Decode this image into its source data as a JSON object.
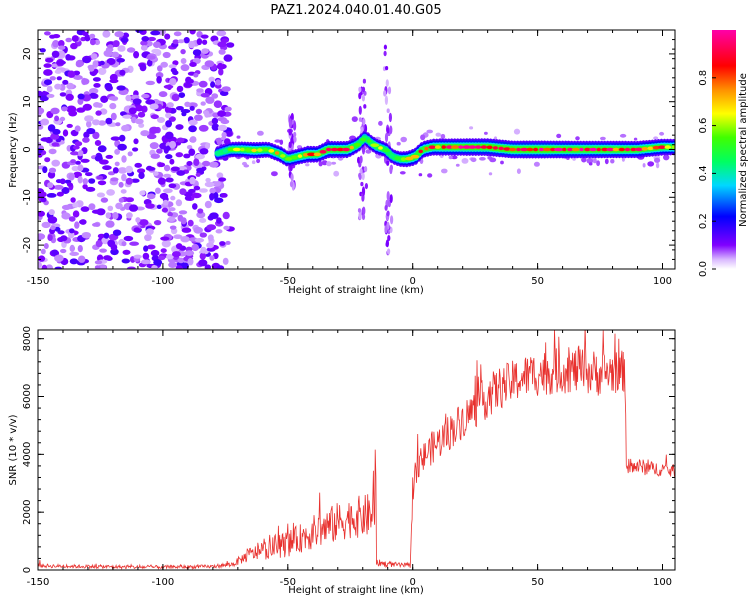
{
  "title": "PAZ1.2024.040.01.40.G05",
  "chart_data": [
    {
      "type": "heatmap",
      "title": "PAZ1.2024.040.01.40.G05",
      "xlabel": "Height of straight line (km)",
      "ylabel": "Frequency (Hz)",
      "xlim": [
        -150,
        105
      ],
      "ylim": [
        -25,
        25
      ],
      "x_ticks": [
        -150,
        -100,
        -50,
        0,
        50,
        100
      ],
      "y_ticks": [
        -20,
        -10,
        0,
        10,
        20
      ],
      "colorbar": {
        "label": "Normalized spectral amplitude",
        "range": [
          0,
          1
        ],
        "ticks": [
          0.0,
          0.2,
          0.4,
          0.6,
          0.8
        ],
        "tick_labels": [
          "0.0",
          "0.2",
          "0.4",
          "0.6",
          "0.8"
        ],
        "colormap": [
          "#ffffff",
          "#8000ff",
          "#0000ff",
          "#00e0ff",
          "#00ff00",
          "#ffff00",
          "#ff8000",
          "#ff0000",
          "#ff00c0"
        ]
      },
      "noise_region": {
        "x_range": [
          -150,
          -73
        ],
        "y_range": [
          -25,
          25
        ]
      },
      "ridge": {
        "x": [
          -78,
          -73,
          -68,
          -63,
          -58,
          -53,
          -50,
          -46,
          -42,
          -38,
          -34,
          -30,
          -26,
          -22,
          -19,
          -17,
          -14,
          -11,
          -8,
          -5,
          -2,
          1,
          4,
          8,
          12,
          20,
          30,
          40,
          50,
          60,
          70,
          80,
          90,
          100,
          105
        ],
        "y": [
          -0.8,
          0,
          0,
          -0.2,
          0,
          -1,
          -2,
          -1.5,
          -1,
          -1,
          0,
          0,
          0,
          1.0,
          2.5,
          1.5,
          0.5,
          0,
          -1.5,
          -2,
          -2,
          -1.5,
          0,
          0.5,
          0.5,
          0.5,
          0.5,
          0,
          0,
          0,
          0,
          0,
          0,
          0.5,
          0.5
        ],
        "intensity": [
          0.35,
          0.55,
          0.65,
          0.75,
          0.6,
          0.7,
          0.6,
          0.65,
          0.8,
          0.75,
          0.9,
          0.8,
          0.85,
          0.55,
          0.45,
          0.5,
          0.6,
          0.5,
          0.45,
          0.55,
          0.7,
          0.85,
          0.75,
          0.8,
          0.85,
          0.9,
          0.95,
          0.97,
          1.0,
          0.95,
          0.92,
          0.9,
          0.85,
          0.8,
          0.7
        ]
      }
    },
    {
      "type": "line",
      "xlabel": "Height of straight line (km)",
      "ylabel": "SNR (10 * v/v)",
      "xlim": [
        -150,
        105
      ],
      "ylim": [
        0,
        8300
      ],
      "x_ticks": [
        -150,
        -100,
        -50,
        0,
        50,
        100
      ],
      "y_ticks": [
        0,
        2000,
        4000,
        6000,
        8000
      ],
      "line_color": "#e8312e",
      "series": [
        {
          "x": [
            -150,
            -140,
            -130,
            -120,
            -110,
            -100,
            -90,
            -80,
            -72,
            -65,
            -60,
            -55,
            -50,
            -45,
            -40,
            -35,
            -30,
            -25,
            -20,
            -16,
            -15,
            -14,
            -10,
            -5,
            -1,
            0,
            1,
            3,
            5,
            10,
            15,
            20,
            25,
            30,
            35,
            40,
            45,
            50,
            55,
            60,
            65,
            70,
            75,
            80,
            85,
            85.5,
            87,
            90,
            95,
            100,
            105
          ],
          "y": [
            150,
            130,
            120,
            110,
            100,
            100,
            110,
            120,
            200,
            550,
            650,
            800,
            900,
            1100,
            1300,
            1450,
            1650,
            1800,
            1850,
            1900,
            300,
            250,
            200,
            170,
            150,
            2800,
            3300,
            3600,
            4000,
            4400,
            4800,
            5200,
            5600,
            6000,
            6300,
            6500,
            6700,
            6800,
            6850,
            6900,
            6900,
            6850,
            6800,
            6850,
            6850,
            3700,
            3500,
            3600,
            3500,
            3500,
            3400
          ],
          "noise": [
            70,
            60,
            60,
            60,
            60,
            60,
            60,
            60,
            90,
            250,
            300,
            400,
            450,
            500,
            600,
            650,
            700,
            700,
            750,
            800,
            150,
            120,
            100,
            80,
            80,
            500,
            500,
            550,
            550,
            600,
            650,
            650,
            700,
            750,
            750,
            750,
            750,
            800,
            800,
            800,
            800,
            800,
            800,
            750,
            750,
            300,
            280,
            280,
            260,
            250,
            250
          ]
        }
      ]
    }
  ]
}
